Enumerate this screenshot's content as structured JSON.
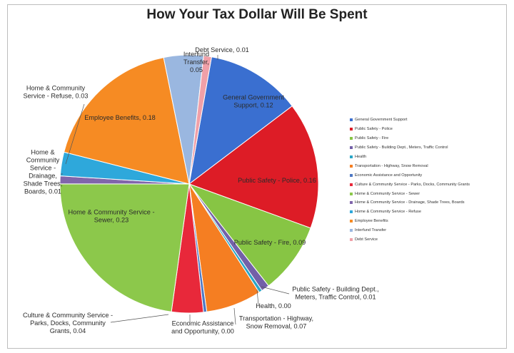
{
  "chart_data": {
    "type": "pie",
    "title": "How Your Tax Dollar Will Be Spent",
    "legend_position": "right",
    "slices": [
      {
        "label": "General Government Support",
        "value": 0.12,
        "color": "#3a6fd0",
        "data_label": "General Government\nSupport, 0.12"
      },
      {
        "label": "Public Safety - Police",
        "value": 0.16,
        "color": "#dd1c26",
        "data_label": "Public Safety - Police, 0.16"
      },
      {
        "label": "Public Safety - Fire",
        "value": 0.09,
        "color": "#87c544",
        "data_label": "Public Safety - Fire, 0.09"
      },
      {
        "label": "Public Safety - Building Dept., Meters, Traffic Control",
        "value": 0.01,
        "color": "#7360a8",
        "data_label": "Public Safety - Building Dept.,\nMeters, Traffic Control, 0.01"
      },
      {
        "label": "Health",
        "value": 0.0,
        "color": "#2aa6c7",
        "data_label": "Health, 0.00"
      },
      {
        "label": "Transportation - Highway, Snow Removal",
        "value": 0.07,
        "color": "#f57e22",
        "data_label": "Transportation - Highway,\nSnow Removal, 0.07"
      },
      {
        "label": "Economic Assistance and Opportunity",
        "value": 0.0,
        "color": "#4d78c4",
        "data_label": "Economic Assistance\nand Opportunity, 0.00"
      },
      {
        "label": "Culture & Community Service - Parks, Docks, Community Grants",
        "value": 0.04,
        "color": "#e8283a",
        "data_label": "Culture & Community Service -\nParks, Docks, Community\nGrants, 0.04"
      },
      {
        "label": "Home & Community Service - Sewer",
        "value": 0.23,
        "color": "#8cc84b",
        "data_label": "Home & Community Service -\nSewer, 0.23"
      },
      {
        "label": "Home & Community Service - Drainage, Shade Trees, Boards",
        "value": 0.01,
        "color": "#8065ab",
        "data_label": "Home &\nCommunity\nService -\nDrainage,\nShade Trees,\nBoards, 0.01"
      },
      {
        "label": "Home & Community Service - Refuse",
        "value": 0.03,
        "color": "#2ea8db",
        "data_label": "Home & Community\nService - Refuse, 0.03"
      },
      {
        "label": "Employee Benefits",
        "value": 0.18,
        "color": "#f68b23",
        "data_label": "Employee Benefits, 0.18"
      },
      {
        "label": "Interfund Transfer",
        "value": 0.05,
        "color": "#9ab7e0",
        "data_label": "Interfund\nTransfer,\n0.05"
      },
      {
        "label": "Debt Service",
        "value": 0.01,
        "color": "#f0a0a8",
        "data_label": "Debt Service, 0.01"
      }
    ]
  }
}
